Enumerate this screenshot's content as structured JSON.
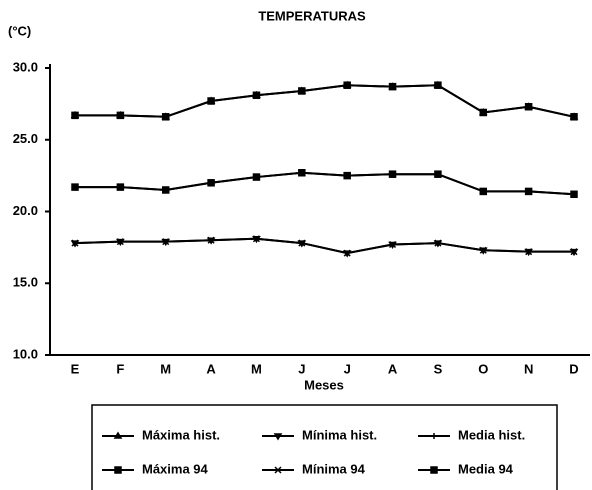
{
  "chart_data": {
    "type": "line",
    "title": "TEMPERATURAS",
    "y_label": "(°C)",
    "x_label": "Meses",
    "categories": [
      "E",
      "F",
      "M",
      "A",
      "M",
      "J",
      "J",
      "A",
      "S",
      "O",
      "N",
      "D"
    ],
    "ylim": [
      10,
      30
    ],
    "yticks": [
      {
        "value": 10,
        "label": "10.0"
      },
      {
        "value": 15,
        "label": "15.0"
      },
      {
        "value": 20,
        "label": "20.0"
      },
      {
        "value": 25,
        "label": "25.0"
      },
      {
        "value": 30,
        "label": "30.0"
      }
    ],
    "series": [
      {
        "name": "Máxima hist.",
        "color": "#000000",
        "marker": "triangle-up",
        "values": [
          26.7,
          26.7,
          26.6,
          27.7,
          28.1,
          28.4,
          28.8,
          28.7,
          28.8,
          26.9,
          27.3,
          26.6
        ]
      },
      {
        "name": "Mínima hist.",
        "color": "#000000",
        "marker": "triangle-down",
        "values": [
          17.8,
          17.9,
          17.9,
          18.0,
          18.1,
          17.8,
          17.1,
          17.7,
          17.8,
          17.3,
          17.2,
          17.2
        ]
      },
      {
        "name": "Media hist.",
        "color": "#000000",
        "marker": "plus",
        "values": [
          21.7,
          21.7,
          21.5,
          22.0,
          22.4,
          22.7,
          22.5,
          22.6,
          22.6,
          21.4,
          21.4,
          21.2
        ]
      },
      {
        "name": "Máxima 94",
        "color": "#000000",
        "marker": "square",
        "values": [
          26.7,
          26.7,
          26.6,
          27.7,
          28.1,
          28.4,
          28.8,
          28.7,
          28.8,
          26.9,
          27.3,
          26.6
        ]
      },
      {
        "name": "Mínima 94",
        "color": "#000000",
        "marker": "x",
        "values": [
          17.8,
          17.9,
          17.9,
          18.0,
          18.1,
          17.8,
          17.1,
          17.7,
          17.8,
          17.3,
          17.2,
          17.2
        ]
      },
      {
        "name": "Media 94",
        "color": "#000000",
        "marker": "square",
        "values": [
          21.7,
          21.7,
          21.5,
          22.0,
          22.4,
          22.7,
          22.5,
          22.6,
          22.6,
          21.4,
          21.4,
          21.2
        ]
      }
    ]
  }
}
